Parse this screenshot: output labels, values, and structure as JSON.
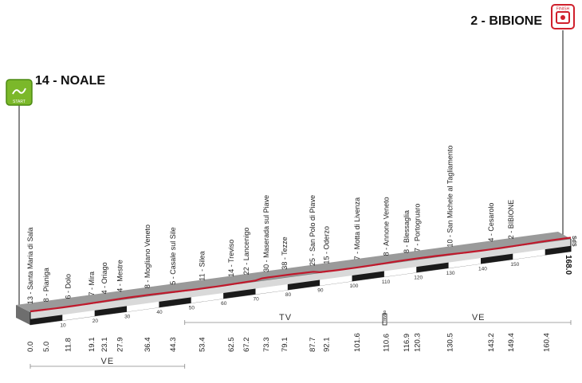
{
  "route": {
    "start_town": "14 - NOALE",
    "finish_town": "2 - BIBIONE",
    "start_badge": "START",
    "finish_badge": "FINISH",
    "sds_label": "SdS",
    "km_end_label": "168.0"
  },
  "waypoints": [
    {
      "km": 0.0,
      "label": "13 - Santa Maria di Sala",
      "km_text": "0.0"
    },
    {
      "km": 5.0,
      "label": "8 - Pianiga",
      "km_text": "5.0"
    },
    {
      "km": 11.8,
      "label": "6 - Dolo",
      "km_text": "11.8"
    },
    {
      "km": 19.1,
      "label": "7 - Mira",
      "km_text": "19.1"
    },
    {
      "km": 23.1,
      "label": "4 - Oriago",
      "km_text": "23.1"
    },
    {
      "km": 27.9,
      "label": "4 - Mestre",
      "km_text": "27.9"
    },
    {
      "km": 36.4,
      "label": "8 - Mogliano Veneto",
      "km_text": "36.4"
    },
    {
      "km": 44.3,
      "label": "5 - Casale sul Sile",
      "km_text": "44.3"
    },
    {
      "km": 53.4,
      "label": "11 - Silea",
      "km_text": "53.4"
    },
    {
      "km": 62.5,
      "label": "14 - Treviso",
      "km_text": "62.5"
    },
    {
      "km": 67.2,
      "label": "22 - Lancenigo",
      "km_text": "67.2"
    },
    {
      "km": 73.3,
      "label": "30 - Maserada sul Piave",
      "km_text": "73.3"
    },
    {
      "km": 79.1,
      "label": "38 - Tezze",
      "km_text": "79.1"
    },
    {
      "km": 87.7,
      "label": "25 - San Polo di Piave",
      "km_text": "87.7"
    },
    {
      "km": 92.1,
      "label": "15 - Oderzo",
      "km_text": "92.1"
    },
    {
      "km": 101.6,
      "label": "7 - Motta di Livenza",
      "km_text": "101.6"
    },
    {
      "km": 110.6,
      "label": "8 - Annone Veneto",
      "km_text": "110.6"
    },
    {
      "km": 116.9,
      "label": "8 - Blessaglia",
      "km_text": "116.9"
    },
    {
      "km": 120.3,
      "label": "7 - Portogruaro",
      "km_text": "120.3"
    },
    {
      "km": 130.5,
      "label": "10 - San Michele al Tagliamento",
      "km_text": "130.5"
    },
    {
      "km": 143.2,
      "label": "4 - Cesarolo",
      "km_text": "143.2"
    },
    {
      "km": 149.4,
      "label": "2 - BIBIONE",
      "km_text": "149.4"
    },
    {
      "km": 160.4,
      "label": "",
      "km_text": "160.4"
    }
  ],
  "km_ticks": [
    "10",
    "20",
    "30",
    "40",
    "50",
    "60",
    "70",
    "80",
    "90",
    "100",
    "110",
    "120",
    "130",
    "140",
    "150"
  ],
  "provinces": [
    {
      "code": "VE",
      "from_km": 0,
      "to_km": 48.0
    },
    {
      "code": "TV",
      "from_km": 48.0,
      "to_km": 110.6
    },
    {
      "code": "VE",
      "from_km": 110.6,
      "to_km": 168.0
    }
  ],
  "border_marker": "Treviso",
  "colors": {
    "road": "#c0192c",
    "band_dark": "#1a1a1a",
    "band_gray": "#555555",
    "start_green": "#7bb82a",
    "finish_red": "#d0202c"
  }
}
